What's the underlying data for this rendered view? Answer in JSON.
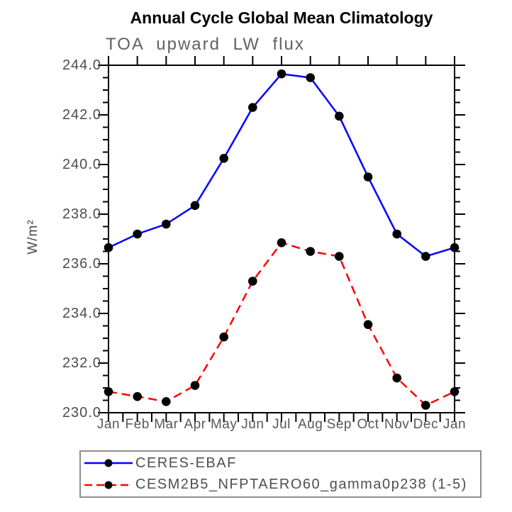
{
  "figure": {
    "title": "Annual Cycle Global Mean Climatology",
    "subtitle": "TOA upward LW flux",
    "ylabel": "W/m²"
  },
  "chart_data": {
    "type": "line",
    "title": "Annual Cycle Global Mean Climatology",
    "subtitle": "TOA upward LW flux",
    "xlabel": "",
    "ylabel": "W/m²",
    "categories": [
      "Jan",
      "Feb",
      "Mar",
      "Apr",
      "May",
      "Jun",
      "Jul",
      "Aug",
      "Sep",
      "Oct",
      "Nov",
      "Dec",
      "Jan"
    ],
    "ylim": [
      230.0,
      244.0
    ],
    "ytick_step": 2.0,
    "ytick_minor_step": 0.5,
    "ytick_labels": [
      "244.0",
      "242.0",
      "240.0",
      "238.0",
      "236.0",
      "234.0",
      "232.0",
      "230.0"
    ],
    "grid": false,
    "legend_position": "bottom-left",
    "axis_color": "#000000",
    "marker_color": "#000000",
    "series": [
      {
        "name": "CERES-EBAF",
        "color": "#0000ff",
        "line_style": "solid",
        "marker": "circle",
        "values": [
          236.65,
          237.2,
          237.6,
          238.35,
          240.25,
          242.3,
          243.65,
          243.5,
          241.95,
          239.5,
          237.2,
          236.3,
          236.65
        ]
      },
      {
        "name": "CESM2B5_NFPTAERO60_gamma0p238 (1-5)",
        "color": "#ff0000",
        "line_style": "dashed",
        "marker": "circle",
        "values": [
          230.85,
          230.65,
          230.45,
          231.1,
          233.05,
          235.3,
          236.85,
          236.5,
          236.3,
          233.55,
          231.4,
          230.3,
          230.85
        ]
      }
    ]
  }
}
